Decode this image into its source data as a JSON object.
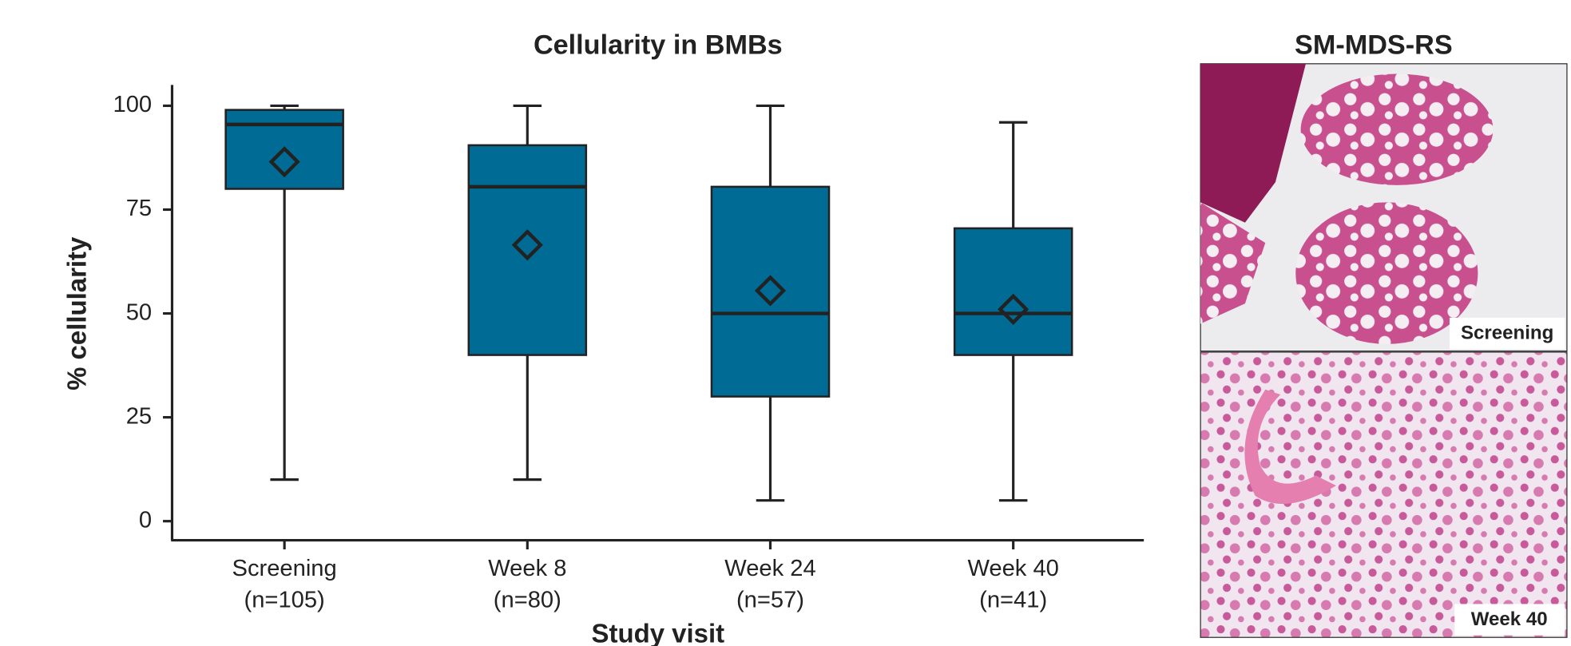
{
  "chart_data": {
    "type": "box",
    "title": "Cellularity in BMBs",
    "x_label": "Study visit",
    "y_label": "% cellularity",
    "categories": [
      "Screening",
      "Week 8",
      "Week 24",
      "Week 40"
    ],
    "n_labels": [
      "(n=105)",
      "(n=80)",
      "(n=57)",
      "(n=41)"
    ],
    "boxes": [
      {
        "whislo": 10,
        "q1": 80,
        "median": 95.5,
        "q3": 99,
        "whishi": 100,
        "mean": 86.5
      },
      {
        "whislo": 10,
        "q1": 40,
        "median": 80.5,
        "q3": 90.5,
        "whishi": 100,
        "mean": 66.5
      },
      {
        "whislo": 5,
        "q1": 30,
        "median": 50,
        "q3": 80.5,
        "whishi": 100,
        "mean": 55.5
      },
      {
        "whislo": 5,
        "q1": 40,
        "median": 50,
        "q3": 70.5,
        "whishi": 96,
        "mean": 51
      }
    ],
    "color": "#006c96",
    "ylim": [
      -4.6,
      105
    ],
    "yticks": [
      0,
      25,
      50,
      75,
      100
    ]
  },
  "image_panel": {
    "title": "SM-MDS-RS",
    "images": [
      {
        "label": "Screening"
      },
      {
        "label": "Week 40"
      }
    ]
  }
}
